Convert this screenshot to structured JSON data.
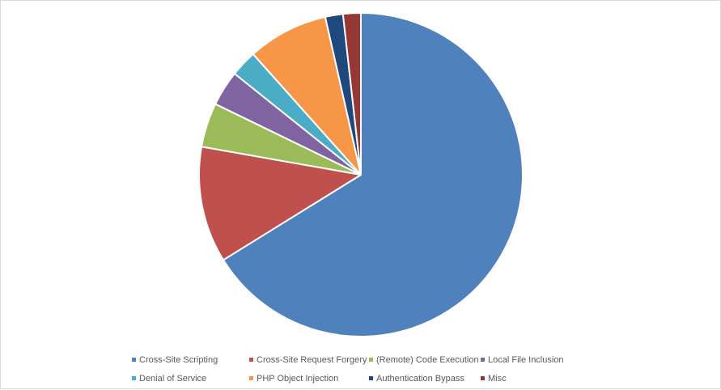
{
  "chart_data": {
    "type": "pie",
    "title": "",
    "categories": [
      "Cross-Site Scripting",
      "Cross-Site Request Forgery",
      "(Remote) Code Execution",
      "Local File Inclusion",
      "Denial of Service",
      "PHP Object Injection",
      "Authentication Bypass",
      "Misc"
    ],
    "values": [
      67.3,
      11.8,
      4.5,
      3.6,
      2.7,
      8.2,
      1.8,
      1.8
    ],
    "colors": [
      "#4f81bd",
      "#c0504d",
      "#9bbb59",
      "#8064a2",
      "#4bacc6",
      "#f79646",
      "#1f497d",
      "#953735"
    ],
    "legend_position": "bottom"
  }
}
